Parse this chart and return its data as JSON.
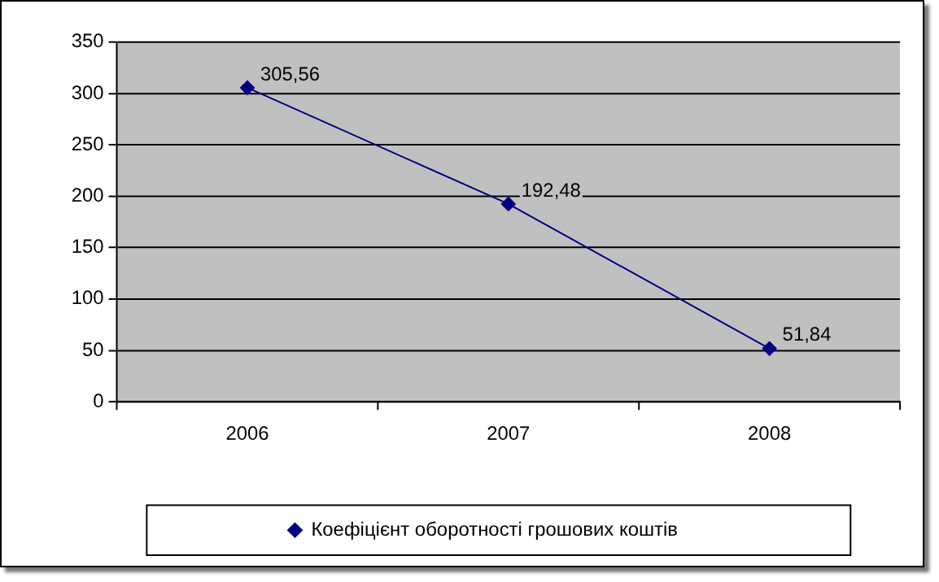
{
  "chart_data": {
    "type": "line",
    "categories": [
      "2006",
      "2007",
      "2008"
    ],
    "series": [
      {
        "name": "Коефіцієнт оборотності грошових коштів",
        "color": "#000080",
        "values": [
          305.56,
          192.48,
          51.84
        ],
        "value_labels": [
          "305,56",
          "192,48",
          "51,84"
        ]
      }
    ],
    "ylim": [
      0,
      350
    ],
    "yticks": [
      0,
      50,
      100,
      150,
      200,
      250,
      300,
      350
    ],
    "grid": "y",
    "legend": "bottom",
    "marker": "diamond",
    "line_style": "solid"
  }
}
